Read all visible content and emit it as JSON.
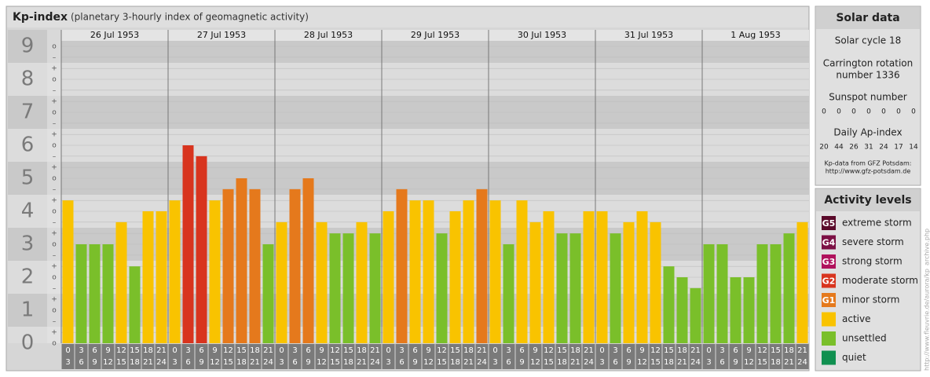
{
  "header": {
    "title": "Kp-index",
    "subtitle": "(planetary 3-hourly index of geomagnetic activity)"
  },
  "chart_data": {
    "type": "bar",
    "ylim": [
      -0.5,
      9.5
    ],
    "yticks": [
      0,
      1,
      2,
      3,
      4,
      5,
      6,
      7,
      8,
      9
    ],
    "subticks": [
      {
        "value": 9,
        "label": "o"
      },
      {
        "value": 8.67,
        "label": "–"
      },
      {
        "value": 8.33,
        "label": "+"
      },
      {
        "value": 8,
        "label": "o"
      },
      {
        "value": 7.67,
        "label": "–"
      },
      {
        "value": 7.33,
        "label": "+"
      },
      {
        "value": 7,
        "label": "o"
      },
      {
        "value": 6.67,
        "label": "–"
      },
      {
        "value": 6.33,
        "label": "+"
      },
      {
        "value": 6,
        "label": "o"
      },
      {
        "value": 5.67,
        "label": "–"
      },
      {
        "value": 5.33,
        "label": "+"
      },
      {
        "value": 5,
        "label": "o"
      },
      {
        "value": 4.67,
        "label": "–"
      },
      {
        "value": 4.33,
        "label": "+"
      },
      {
        "value": 4,
        "label": "o"
      },
      {
        "value": 3.67,
        "label": "–"
      },
      {
        "value": 3.33,
        "label": "+"
      },
      {
        "value": 3,
        "label": "o"
      },
      {
        "value": 2.67,
        "label": "–"
      },
      {
        "value": 2.33,
        "label": "+"
      },
      {
        "value": 2,
        "label": "o"
      },
      {
        "value": 1.67,
        "label": "–"
      },
      {
        "value": 1.33,
        "label": "+"
      },
      {
        "value": 1,
        "label": "o"
      },
      {
        "value": 0.67,
        "label": "–"
      },
      {
        "value": 0.33,
        "label": "+"
      },
      {
        "value": 0,
        "label": "o"
      }
    ],
    "hours": [
      {
        "from": 0,
        "to": 3
      },
      {
        "from": 3,
        "to": 6
      },
      {
        "from": 6,
        "to": 9
      },
      {
        "from": 9,
        "to": 12
      },
      {
        "from": 12,
        "to": 15
      },
      {
        "from": 15,
        "to": 18
      },
      {
        "from": 18,
        "to": 21
      },
      {
        "from": 21,
        "to": 24
      }
    ],
    "days": [
      {
        "date": "26 Jul 1953",
        "values": [
          4.33,
          3,
          3,
          3,
          3.67,
          2.33,
          4,
          4
        ],
        "colors": [
          "#f9c300",
          "#7abf2a",
          "#7abf2a",
          "#7abf2a",
          "#f9c300",
          "#7abf2a",
          "#f9c300",
          "#f9c300"
        ]
      },
      {
        "date": "27 Jul 1953",
        "values": [
          4.33,
          6,
          5.67,
          4.33,
          4.67,
          5,
          4.67,
          3
        ],
        "colors": [
          "#f9c300",
          "#d8341e",
          "#d8341e",
          "#f9c300",
          "#e5791c",
          "#e5791c",
          "#e5791c",
          "#7abf2a"
        ]
      },
      {
        "date": "28 Jul 1953",
        "values": [
          3.67,
          4.67,
          5,
          3.67,
          3.33,
          3.33,
          3.67,
          3.33
        ],
        "colors": [
          "#f9c300",
          "#e5791c",
          "#e5791c",
          "#f9c300",
          "#7abf2a",
          "#7abf2a",
          "#f9c300",
          "#7abf2a"
        ]
      },
      {
        "date": "29 Jul 1953",
        "values": [
          4,
          4.67,
          4.33,
          4.33,
          3.33,
          4,
          4.33,
          4.67
        ],
        "colors": [
          "#f9c300",
          "#e5791c",
          "#f9c300",
          "#f9c300",
          "#7abf2a",
          "#f9c300",
          "#f9c300",
          "#e5791c"
        ]
      },
      {
        "date": "30 Jul 1953",
        "values": [
          4.33,
          3,
          4.33,
          3.67,
          4,
          3.33,
          3.33,
          4
        ],
        "colors": [
          "#f9c300",
          "#7abf2a",
          "#f9c300",
          "#f9c300",
          "#f9c300",
          "#7abf2a",
          "#7abf2a",
          "#f9c300"
        ]
      },
      {
        "date": "31 Jul 1953",
        "values": [
          4,
          3.33,
          3.67,
          4,
          3.67,
          2.33,
          2,
          1.67
        ],
        "colors": [
          "#f9c300",
          "#7abf2a",
          "#f9c300",
          "#f9c300",
          "#f9c300",
          "#7abf2a",
          "#7abf2a",
          "#7abf2a"
        ]
      },
      {
        "date": "1 Aug 1953",
        "values": [
          3,
          3,
          2,
          2,
          3,
          3,
          3.33,
          3.67
        ],
        "colors": [
          "#7abf2a",
          "#7abf2a",
          "#7abf2a",
          "#7abf2a",
          "#7abf2a",
          "#7abf2a",
          "#7abf2a",
          "#f9c300"
        ]
      }
    ]
  },
  "solar_data": {
    "title": "Solar data",
    "cycle": "Solar cycle 18",
    "carrington_1": "Carrington rotation",
    "carrington_2": "number 1336",
    "sunspot_title": "Sunspot number",
    "sunspot": [
      0,
      0,
      0,
      0,
      0,
      0,
      0
    ],
    "ap_title": "Daily Ap-index",
    "ap": [
      20,
      44,
      26,
      31,
      24,
      17,
      14
    ],
    "source": "Kp-data from GFZ Potsdam:",
    "source_url": "http://www.gfz-potsdam.de"
  },
  "activity_levels": {
    "title": "Activity levels",
    "items": [
      {
        "badge": "G5",
        "label": "extreme storm",
        "color": "#5a0a2a"
      },
      {
        "badge": "G4",
        "label": "severe storm",
        "color": "#7c1044"
      },
      {
        "badge": "G3",
        "label": "strong storm",
        "color": "#b0125c"
      },
      {
        "badge": "G2",
        "label": "moderate storm",
        "color": "#d8341e"
      },
      {
        "badge": "G1",
        "label": "minor storm",
        "color": "#e5791c"
      },
      {
        "label": "active",
        "color": "#f9c300"
      },
      {
        "label": "unsettled",
        "color": "#7abf2a"
      },
      {
        "label": "quiet",
        "color": "#109050"
      }
    ]
  },
  "credit": "http://www.fleuvrie.de/aurora/kp_archive.php"
}
